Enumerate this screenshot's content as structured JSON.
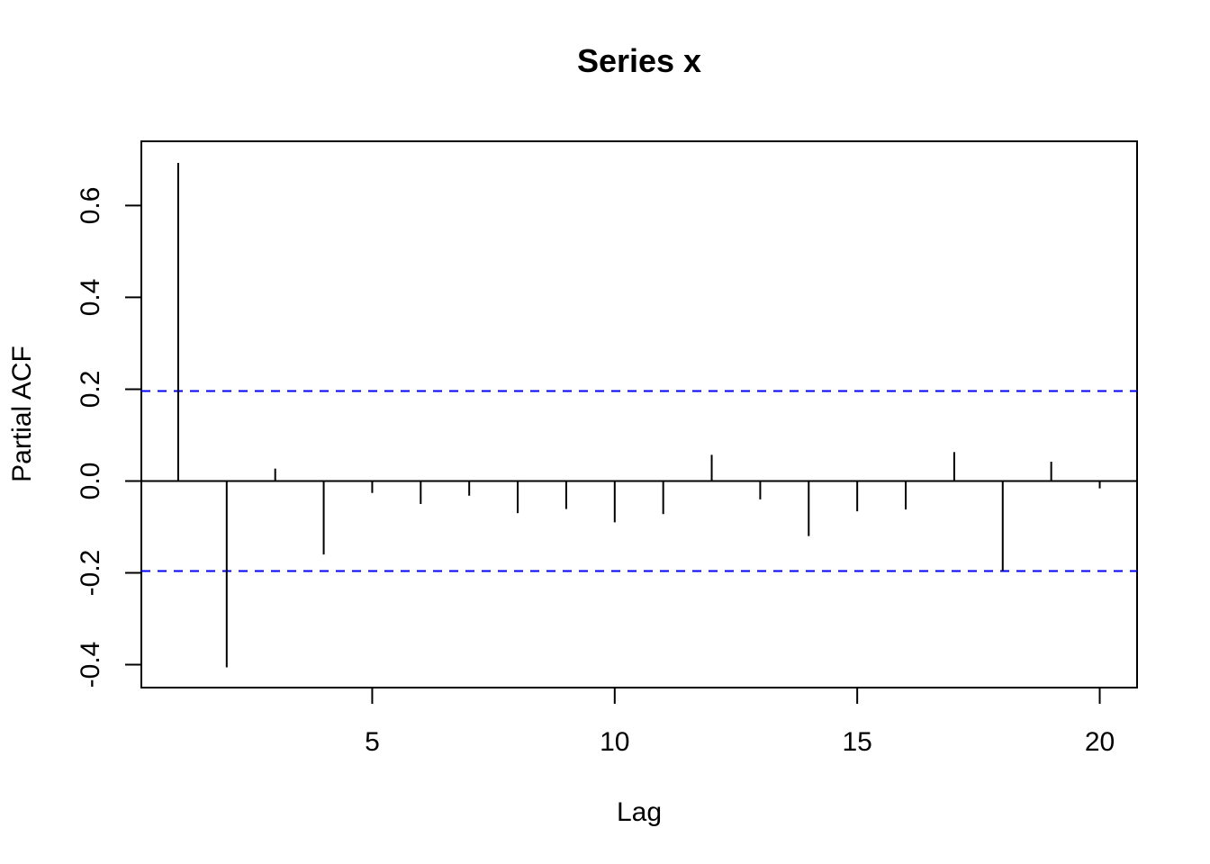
{
  "chart_data": {
    "type": "bar",
    "title": "Series  x",
    "xlabel": "Lag",
    "ylabel": "Partial ACF",
    "x": [
      1,
      2,
      3,
      4,
      5,
      6,
      7,
      8,
      9,
      10,
      11,
      12,
      13,
      14,
      15,
      16,
      17,
      18,
      19,
      20
    ],
    "values": [
      0.693,
      -0.406,
      0.027,
      -0.16,
      -0.026,
      -0.05,
      -0.032,
      -0.07,
      -0.061,
      -0.09,
      -0.072,
      0.057,
      -0.04,
      -0.12,
      -0.066,
      -0.062,
      0.063,
      -0.196,
      0.042,
      -0.016
    ],
    "confidence_bounds": [
      0.196,
      -0.196
    ],
    "xlim": [
      0.24,
      20.77
    ],
    "ylim": [
      -0.45,
      0.74
    ],
    "x_ticks": [
      5,
      10,
      15,
      20
    ],
    "x_tick_labels": [
      "5",
      "10",
      "15",
      "20"
    ],
    "y_ticks": [
      -0.4,
      -0.2,
      0.0,
      0.2,
      0.4,
      0.6
    ],
    "y_tick_labels": [
      "-0.4",
      "-0.2",
      "0.0",
      "0.2",
      "0.4",
      "0.6"
    ],
    "colors": {
      "spike": "#000000",
      "confidence": "#0000ff",
      "frame": "#000000"
    },
    "grid": false,
    "legend": "none"
  }
}
